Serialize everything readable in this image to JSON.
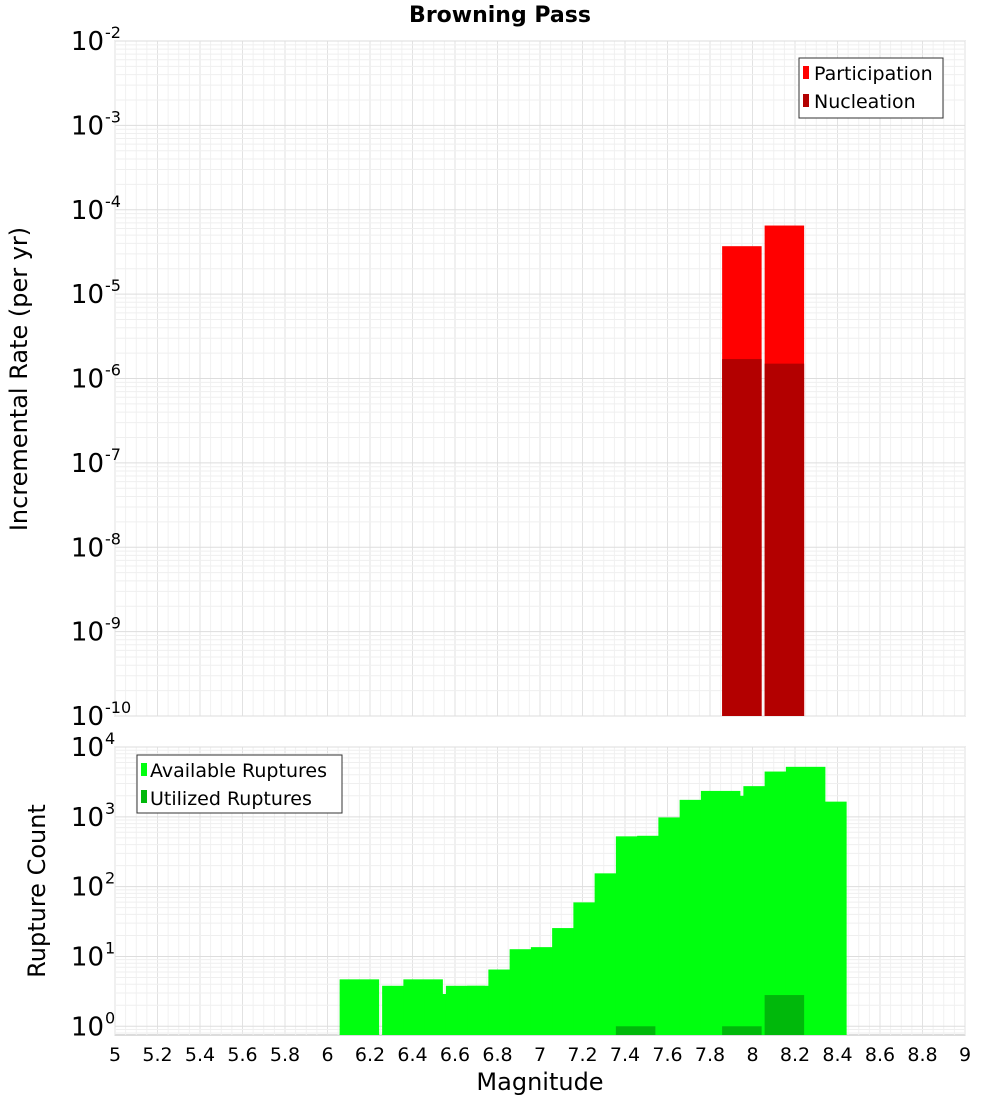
{
  "chart_data": [
    {
      "type": "bar",
      "title": "Browning Pass",
      "xlabel": "Magnitude",
      "ylabel": "Incremental Rate (per yr)",
      "yscale": "log",
      "ylim": [
        1e-10,
        0.01
      ],
      "xlim": [
        5,
        9
      ],
      "y_tick_bases": [
        "10",
        "10",
        "10",
        "10",
        "10",
        "10",
        "10",
        "10",
        "10"
      ],
      "y_tick_exponents": [
        "-10",
        "-9",
        "-8",
        "-7",
        "-6",
        "-5",
        "-4",
        "-3",
        "-2"
      ],
      "grid": true,
      "legend_position": "top-right",
      "series": [
        {
          "name": "Participation",
          "color": "#ff0000",
          "x": [
            7.95,
            8.15
          ],
          "values": [
            3.7e-05,
            6.5e-05
          ]
        },
        {
          "name": "Nucleation",
          "color": "#b30000",
          "x": [
            7.95,
            8.15
          ],
          "values": [
            1.7e-06,
            1.5e-06
          ]
        }
      ]
    },
    {
      "type": "bar",
      "title": "",
      "xlabel": "Magnitude",
      "ylabel": "Rupture Count",
      "yscale": "log",
      "ylim": [
        0.75,
        10000
      ],
      "xlim": [
        5,
        9
      ],
      "x_ticks": [
        "5",
        "5.2",
        "5.4",
        "5.6",
        "5.8",
        "6",
        "6.2",
        "6.4",
        "6.6",
        "6.8",
        "7",
        "7.2",
        "7.4",
        "7.6",
        "7.8",
        "8",
        "8.2",
        "8.4",
        "8.6",
        "8.8",
        "9"
      ],
      "y_tick_bases": [
        "10",
        "10",
        "10",
        "10",
        "10"
      ],
      "y_tick_exponents": [
        "0",
        "1",
        "2",
        "3",
        "4"
      ],
      "grid": true,
      "legend_position": "top-left",
      "series": [
        {
          "name": "Available Ruptures",
          "color": "#00ff0f",
          "x": [
            6.15,
            6.35,
            6.45,
            6.55,
            6.65,
            6.75,
            6.85,
            6.95,
            7.05,
            7.15,
            7.25,
            7.35,
            7.45,
            7.55,
            7.65,
            7.75,
            7.85,
            7.95,
            8.05,
            8.15,
            8.25,
            8.35
          ],
          "values": [
            4.7,
            3.8,
            4.7,
            2.9,
            3.8,
            3.8,
            6.5,
            12.7,
            13.6,
            25.5,
            59.5,
            155,
            525,
            535,
            980,
            1750,
            2350,
            2000,
            2750,
            4450,
            5200,
            1650
          ]
        },
        {
          "name": "Utilized Ruptures",
          "color": "#00b80b",
          "x": [
            7.45,
            7.95,
            8.15
          ],
          "values": [
            1,
            1,
            2.8
          ]
        }
      ]
    }
  ]
}
